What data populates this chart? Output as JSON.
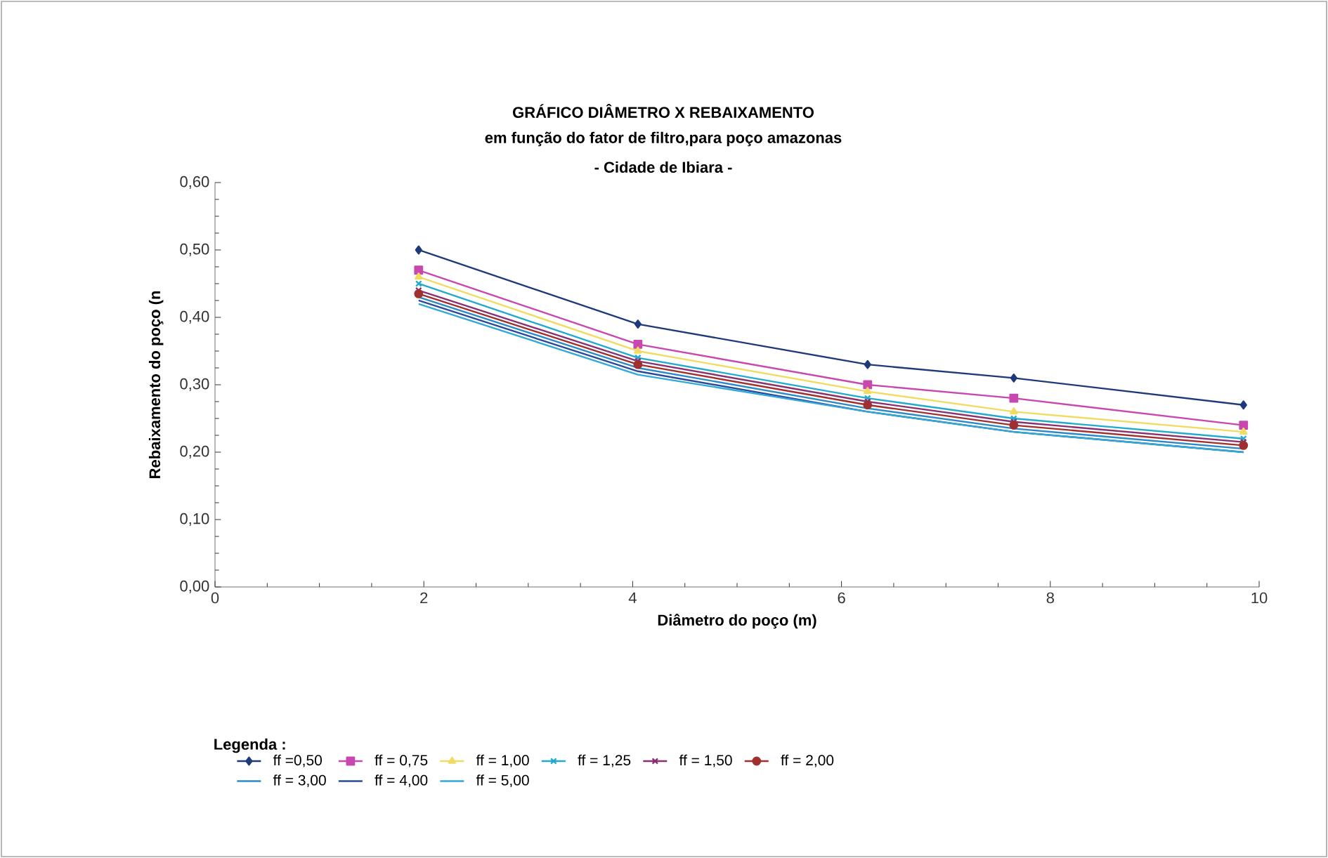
{
  "chart_data": {
    "type": "line",
    "title": "GRÁFICO DIÂMETRO X REBAIXAMENTO",
    "subtitle": "em função do fator de filtro,para poço amazonas",
    "annotations": [
      "- Cidade de Ibiara -"
    ],
    "xlabel": "Diâmetro do poço (m)",
    "ylabel": "Rebaixamento do poço (n",
    "legend_title": "Legenda :",
    "x": [
      1.95,
      4.05,
      6.25,
      7.65,
      9.85
    ],
    "xlim": [
      0,
      10
    ],
    "xticks": [
      0,
      2,
      4,
      6,
      8,
      10
    ],
    "ylim": [
      0,
      0.6
    ],
    "yticks": [
      {
        "value": 0,
        "label": "0,00"
      },
      {
        "value": 0.1,
        "label": "0,10"
      },
      {
        "value": 0.2,
        "label": "0,20"
      },
      {
        "value": 0.3,
        "label": "0,30"
      },
      {
        "value": 0.4,
        "label": "0,40"
      },
      {
        "value": 0.5,
        "label": "0,50"
      },
      {
        "value": 0.6,
        "label": "0,60"
      }
    ],
    "grid": false,
    "legend": "bottom",
    "line_style": "solid",
    "series": [
      {
        "name": "ff =0,50",
        "color": "#1f3a7a",
        "marker": "diamond",
        "values": [
          0.5,
          0.39,
          0.33,
          0.31,
          0.27
        ]
      },
      {
        "name": "ff = 0,75",
        "color": "#c848b0",
        "marker": "square",
        "values": [
          0.47,
          0.36,
          0.3,
          0.28,
          0.24
        ]
      },
      {
        "name": "ff = 1,00",
        "color": "#f0dc60",
        "marker": "triangle",
        "values": [
          0.46,
          0.35,
          0.29,
          0.26,
          0.23
        ]
      },
      {
        "name": "ff = 1,25",
        "color": "#22aacc",
        "marker": "cross",
        "values": [
          0.45,
          0.34,
          0.28,
          0.25,
          0.22
        ]
      },
      {
        "name": "ff = 1,50",
        "color": "#8a3070",
        "marker": "cross",
        "values": [
          0.44,
          0.335,
          0.275,
          0.245,
          0.215
        ]
      },
      {
        "name": "ff = 2,00",
        "color": "#a03030",
        "marker": "circle",
        "values": [
          0.435,
          0.33,
          0.27,
          0.24,
          0.21
        ]
      },
      {
        "name": "ff = 3,00",
        "color": "#2a8ac8",
        "marker": "none",
        "values": [
          0.43,
          0.325,
          0.265,
          0.235,
          0.205
        ]
      },
      {
        "name": "ff = 4,00",
        "color": "#2a4a9a",
        "marker": "none",
        "values": [
          0.425,
          0.32,
          0.26,
          0.23,
          0.2
        ]
      },
      {
        "name": "ff = 5,00",
        "color": "#30a8d8",
        "marker": "none",
        "values": [
          0.42,
          0.315,
          0.26,
          0.23,
          0.2
        ]
      }
    ]
  }
}
